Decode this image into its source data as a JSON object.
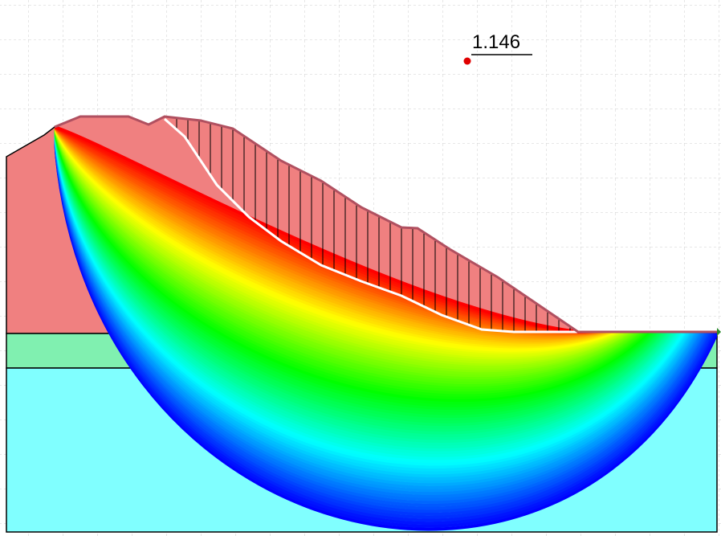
{
  "critical_surface": {
    "factor_of_safety": "1.146"
  }
}
